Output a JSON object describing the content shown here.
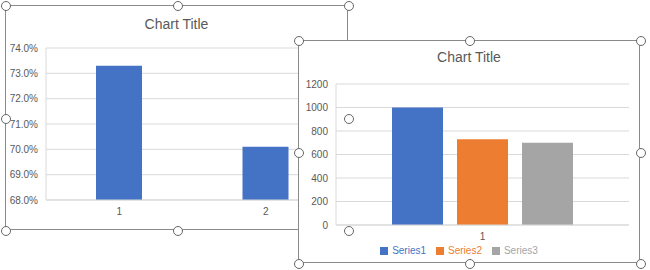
{
  "chart_data": [
    {
      "type": "bar",
      "title": "Chart Title",
      "categories": [
        "1",
        "2"
      ],
      "values": [
        73.3,
        70.1
      ],
      "color": "#4472c4",
      "ylim": [
        68,
        74
      ],
      "yticks": [
        {
          "value": 68,
          "label": "68.0%"
        },
        {
          "value": 69,
          "label": "69.0%"
        },
        {
          "value": 70,
          "label": "70.0%"
        },
        {
          "value": 71,
          "label": "71.0%"
        },
        {
          "value": 72,
          "label": "72.0%"
        },
        {
          "value": 73,
          "label": "73.0%"
        },
        {
          "value": 74,
          "label": "74.0%"
        }
      ],
      "grid": true
    },
    {
      "type": "bar",
      "title": "Chart Title",
      "categories": [
        "1"
      ],
      "series": [
        {
          "name": "Series1",
          "color": "#4472c4",
          "values": [
            1000
          ]
        },
        {
          "name": "Series2",
          "color": "#ed7d31",
          "values": [
            730
          ]
        },
        {
          "name": "Series3",
          "color": "#a5a5a5",
          "values": [
            700
          ]
        }
      ],
      "ylim": [
        0,
        1200
      ],
      "yticks": [
        0,
        200,
        400,
        600,
        800,
        1000,
        1200
      ],
      "grid": true,
      "legend": "bottom"
    }
  ]
}
